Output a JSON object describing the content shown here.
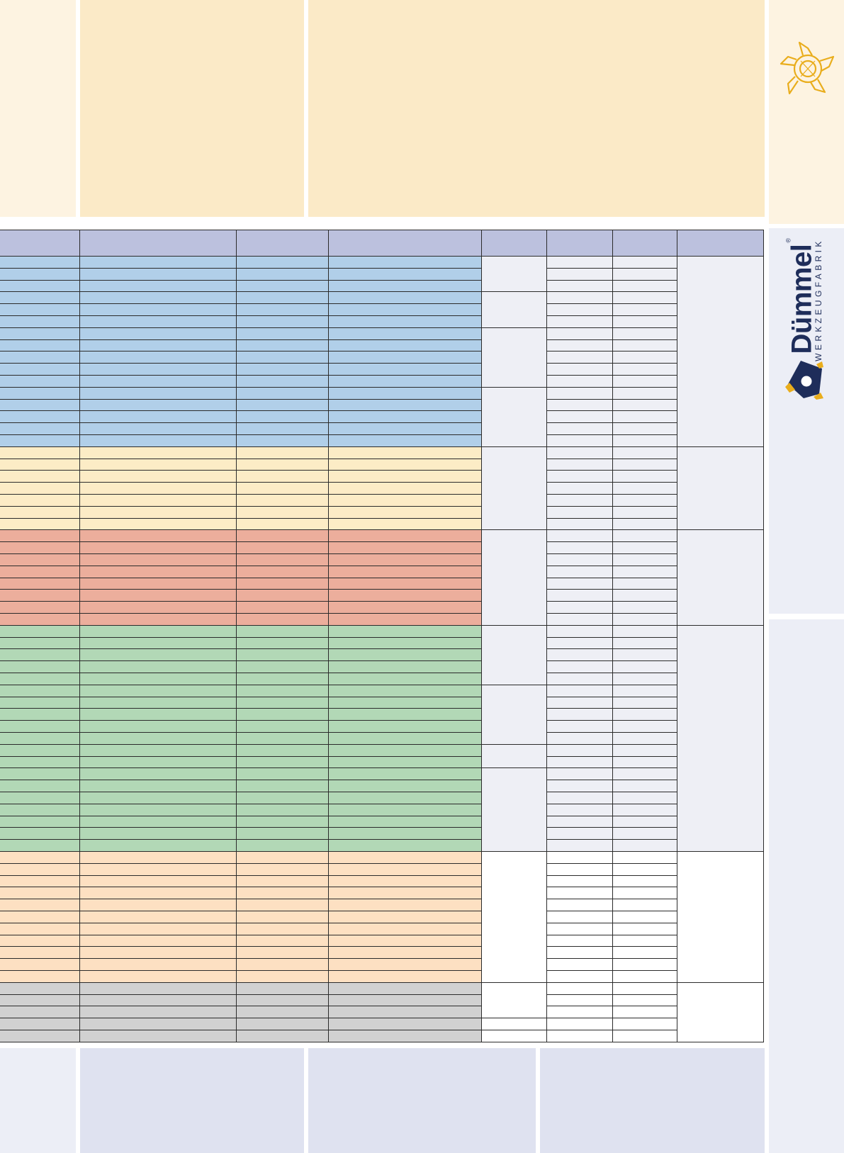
{
  "brand": {
    "name": "Dümmel",
    "registered_mark": "®",
    "tagline": "WERKZEUGFABRIK"
  },
  "colors": {
    "page_background": "#ffffff",
    "top_band_light": "#fdf3e1",
    "top_band": "#fbeac7",
    "bottom_band": "#dfe2f0",
    "right_strip": "#eceef6",
    "header_row": "#bcc1de",
    "value_cells": "#eeeff5",
    "brand_navy": "#1e2d5a",
    "brand_gold": "#e9ad1c",
    "group_blue": "#b1cfe9",
    "group_yellow": "#fcecc6",
    "group_red": "#ecae9c",
    "group_green": "#b2d8b6",
    "group_peach": "#fde0c2",
    "group_grey": "#d1d1d1"
  },
  "icons": {
    "cutter": "milling-cutter-icon",
    "logo": "duemmel-logo-icon"
  },
  "table": {
    "column_count": 8,
    "header": [
      "",
      "",
      "",
      "",
      "",
      "",
      "",
      ""
    ],
    "groups": [
      {
        "name": "blue",
        "color": "#b1cfe9",
        "rows": 16,
        "split": [
          3,
          3,
          5,
          5
        ],
        "values_tint": "#eeeff5"
      },
      {
        "name": "yellow",
        "color": "#fcecc6",
        "rows": 7,
        "split": [
          7
        ],
        "values_tint": "#eeeff5"
      },
      {
        "name": "red",
        "color": "#ecae9c",
        "rows": 8,
        "split": [
          8
        ],
        "values_tint": "#eeeff5"
      },
      {
        "name": "green",
        "color": "#b2d8b6",
        "rows": 19,
        "split": [
          5,
          5,
          2,
          7
        ],
        "values_tint": "#eeeff5"
      },
      {
        "name": "peach",
        "color": "#fde0c2",
        "rows": 11,
        "split": [
          11
        ],
        "values_tint": "#ffffff"
      },
      {
        "name": "grey",
        "color": "#d1d1d1",
        "rows": 5,
        "split": [
          3,
          1,
          1
        ],
        "values_tint": "#ffffff"
      }
    ]
  }
}
